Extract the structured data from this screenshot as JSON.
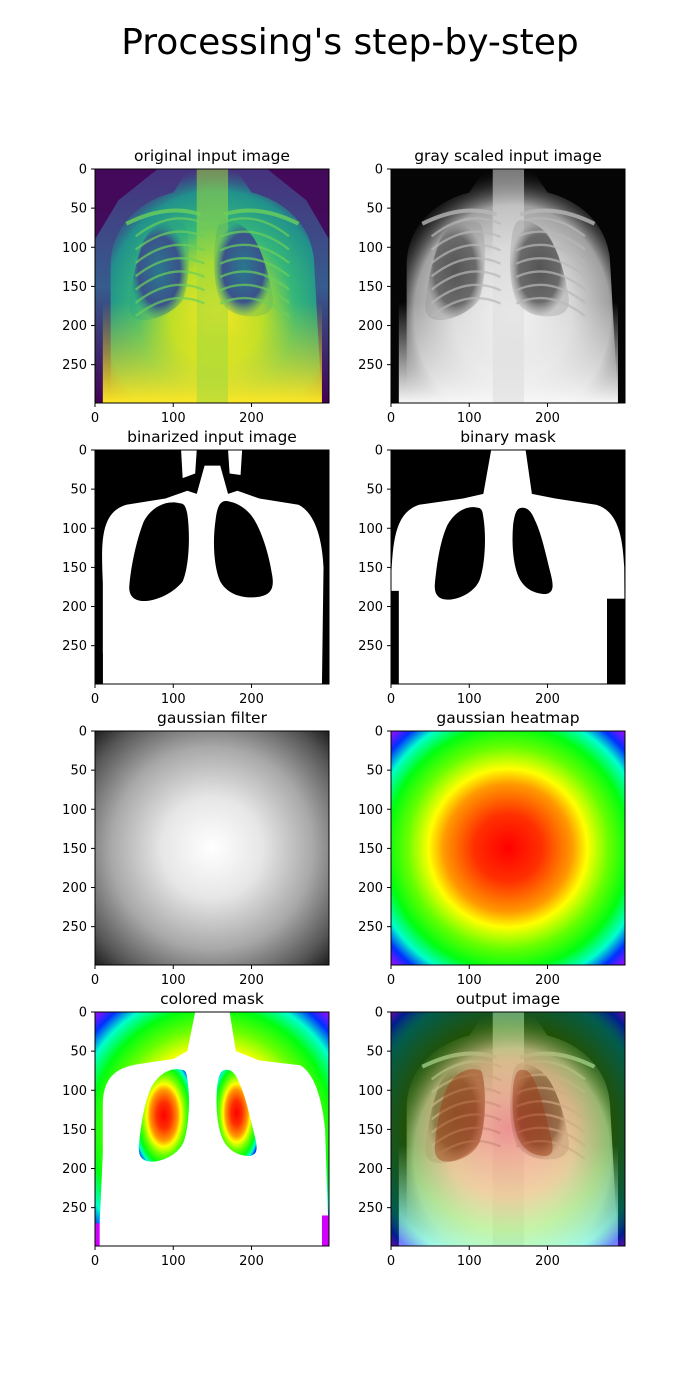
{
  "suptitle": "Processing's step-by-step",
  "chart_data": [
    {
      "type": "image",
      "title": "original input image",
      "render": "xray-viridis",
      "xticks": [
        0,
        100,
        200
      ],
      "yticks": [
        0,
        50,
        100,
        150,
        200,
        250
      ],
      "xlim": [
        0,
        299
      ],
      "ylim": [
        299,
        0
      ]
    },
    {
      "type": "image",
      "title": "gray scaled input image",
      "render": "xray-gray",
      "xticks": [
        0,
        100,
        200
      ],
      "yticks": [
        0,
        50,
        100,
        150,
        200,
        250
      ],
      "xlim": [
        0,
        299
      ],
      "ylim": [
        299,
        0
      ]
    },
    {
      "type": "image",
      "title": "binarized input image",
      "render": "binary",
      "xticks": [
        0,
        100,
        200
      ],
      "yticks": [
        0,
        50,
        100,
        150,
        200,
        250
      ],
      "xlim": [
        0,
        299
      ],
      "ylim": [
        299,
        0
      ]
    },
    {
      "type": "image",
      "title": "binary mask",
      "render": "mask",
      "xticks": [
        0,
        100,
        200
      ],
      "yticks": [
        0,
        50,
        100,
        150,
        200,
        250
      ],
      "xlim": [
        0,
        299
      ],
      "ylim": [
        299,
        0
      ]
    },
    {
      "type": "image",
      "title": "gaussian filter",
      "render": "gauss-gray",
      "xticks": [
        0,
        100,
        200
      ],
      "yticks": [
        0,
        50,
        100,
        150,
        200,
        250
      ],
      "xlim": [
        0,
        299
      ],
      "ylim": [
        299,
        0
      ]
    },
    {
      "type": "image",
      "title": "gaussian heatmap",
      "render": "gauss-color",
      "xticks": [
        0,
        100,
        200
      ],
      "yticks": [
        0,
        50,
        100,
        150,
        200,
        250
      ],
      "xlim": [
        0,
        299
      ],
      "ylim": [
        299,
        0
      ]
    },
    {
      "type": "image",
      "title": "colored mask",
      "render": "colored-mask",
      "xticks": [
        0,
        100,
        200
      ],
      "yticks": [
        0,
        50,
        100,
        150,
        200,
        250
      ],
      "xlim": [
        0,
        299
      ],
      "ylim": [
        299,
        0
      ]
    },
    {
      "type": "image",
      "title": "output image",
      "render": "overlay",
      "xticks": [
        0,
        100,
        200
      ],
      "yticks": [
        0,
        50,
        100,
        150,
        200,
        250
      ],
      "xlim": [
        0,
        299
      ],
      "ylim": [
        299,
        0
      ]
    }
  ]
}
